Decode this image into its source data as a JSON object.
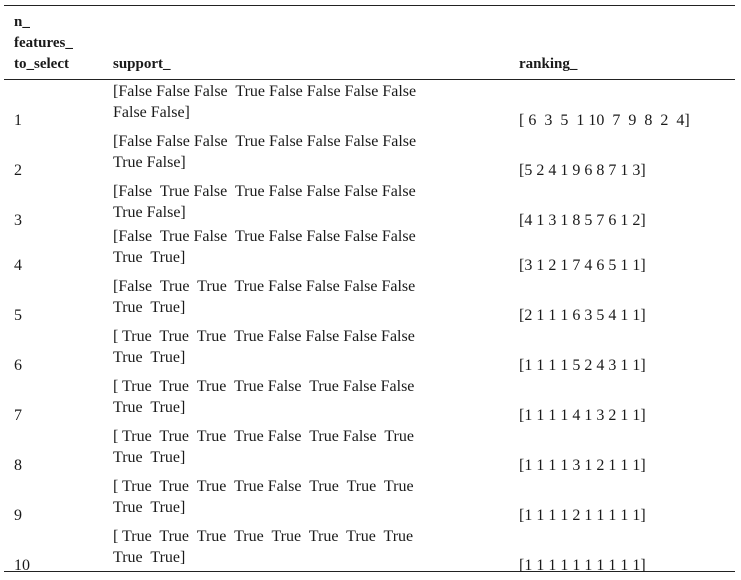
{
  "table": {
    "headers": {
      "n_features": [
        "n_",
        "features_",
        "to_select"
      ],
      "support": "support_",
      "ranking": "ranking_"
    },
    "rows": [
      {
        "n": "1",
        "support_line1": "[False False False  True False False False False",
        "support_line2": "False False]",
        "ranking": "[ 6  3  5  1 10  7  9  8  2  4]"
      },
      {
        "n": "2",
        "support_line1": "[False False False  True False False False False",
        "support_line2": "True False]",
        "ranking": "[5 2 4 1 9 6 8 7 1 3]"
      },
      {
        "n": "3",
        "support_line1": "[False  True False  True False False False False",
        "support_line2": "True False]",
        "ranking": "[4 1 3 1 8 5 7 6 1 2]"
      },
      {
        "n": "4",
        "support_line1": "[False  True False  True False False False False",
        "support_line2": "True  True]",
        "ranking": "[3 1 2 1 7 4 6 5 1 1]"
      },
      {
        "n": "5",
        "support_line1": "[False  True  True  True False False False False",
        "support_line2": "True  True]",
        "ranking": "[2 1 1 1 6 3 5 4 1 1]"
      },
      {
        "n": "6",
        "support_line1": "[ True  True  True  True False False False False",
        "support_line2": "True  True]",
        "ranking": "[1 1 1 1 5 2 4 3 1 1]"
      },
      {
        "n": "7",
        "support_line1": "[ True  True  True  True False  True False False",
        "support_line2": "True  True]",
        "ranking": "[1 1 1 1 4 1 3 2 1 1]"
      },
      {
        "n": "8",
        "support_line1": "[ True  True  True  True False  True False  True",
        "support_line2": "True  True]",
        "ranking": "[1 1 1 1 3 1 2 1 1 1]"
      },
      {
        "n": "9",
        "support_line1": "[ True  True  True  True False  True  True  True",
        "support_line2": "True  True]",
        "ranking": "[1 1 1 1 2 1 1 1 1 1]"
      },
      {
        "n": "10",
        "support_line1": "[ True  True  True  True  True  True  True  True",
        "support_line2": "True  True]",
        "ranking": "[1 1 1 1 1 1 1 1 1 1]"
      }
    ]
  }
}
